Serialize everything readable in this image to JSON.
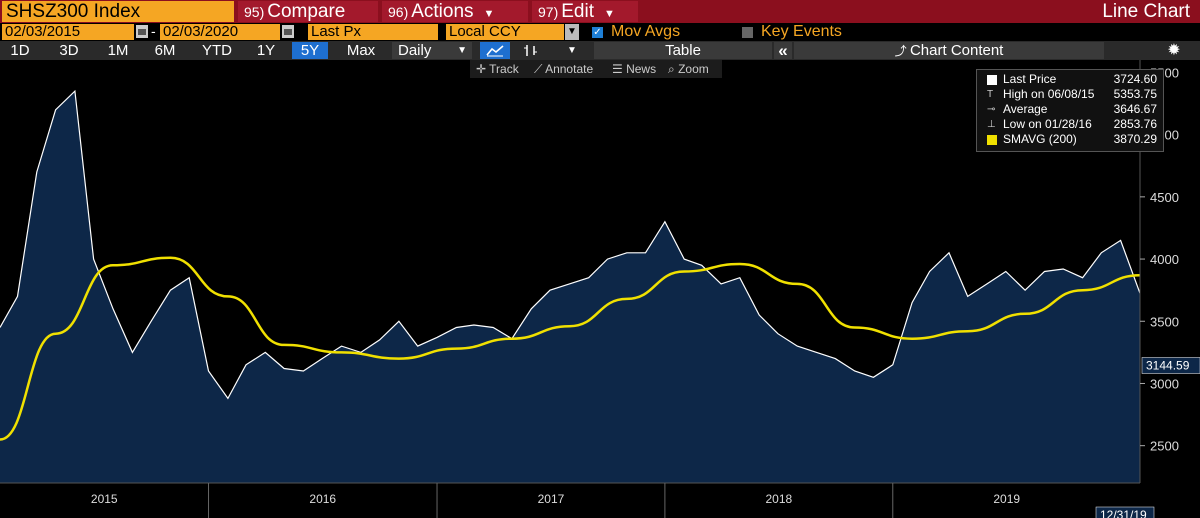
{
  "header": {
    "ticker": "SHSZ300 Index",
    "menus": [
      {
        "num": "95)",
        "label": "Compare"
      },
      {
        "num": "96)",
        "label": "Actions"
      },
      {
        "num": "97)",
        "label": "Edit"
      }
    ],
    "chart_kind": "Line Chart"
  },
  "controls": {
    "start_date": "02/03/2015",
    "end_date": "02/03/2020",
    "field": "Last Px",
    "currency": "Local CCY",
    "mov_avgs_label": "Mov Avgs",
    "key_events_label": "Key Events"
  },
  "toolbar": {
    "ranges": [
      "1D",
      "3D",
      "1M",
      "6M",
      "YTD",
      "1Y",
      "5Y",
      "Max"
    ],
    "selected_range": "5Y",
    "periodicity": "Daily",
    "table_label": "Table",
    "collapse_label": "«",
    "chart_content_label": "Chart Content"
  },
  "tools": {
    "track": "Track",
    "annotate": "Annotate",
    "news": "News",
    "zoom": "Zoom"
  },
  "legend": [
    {
      "name": "Last Price",
      "value": "3724.60",
      "color": "#ffffff"
    },
    {
      "name": "High on 06/08/15",
      "value": "5353.75",
      "color": "#ffffff"
    },
    {
      "name": "Average",
      "value": "3646.67",
      "color": "#ffffff"
    },
    {
      "name": "Low on 01/28/16",
      "value": "2853.76",
      "color": "#ffffff"
    },
    {
      "name": "SMAVG (200)",
      "value": "3870.29",
      "color": "#f0e000"
    }
  ],
  "price_tag": "3144.59",
  "date_tag": "12/31/19",
  "colors": {
    "price_line": "#ffffff",
    "price_fill": "#0d2748",
    "sma_line": "#f0e000",
    "header_bar": "#8b0f1e",
    "accent_orange": "#f5a623"
  },
  "chart_data": {
    "type": "area",
    "ylim": [
      2200,
      5600
    ],
    "yticks": [
      2500,
      3000,
      3500,
      4000,
      4500,
      5000,
      5500
    ],
    "year_labels": [
      "2015",
      "2016",
      "2017",
      "2018",
      "2019"
    ],
    "series": [
      {
        "name": "Last Price",
        "x": [
          "2015-02",
          "2015-03",
          "2015-04",
          "2015-05",
          "2015-06",
          "2015-07",
          "2015-08",
          "2015-09",
          "2015-10",
          "2015-11",
          "2015-12",
          "2016-01",
          "2016-02",
          "2016-03",
          "2016-04",
          "2016-05",
          "2016-06",
          "2016-07",
          "2016-08",
          "2016-09",
          "2016-10",
          "2016-11",
          "2016-12",
          "2017-01",
          "2017-02",
          "2017-03",
          "2017-04",
          "2017-05",
          "2017-06",
          "2017-07",
          "2017-08",
          "2017-09",
          "2017-10",
          "2017-11",
          "2017-12",
          "2018-01",
          "2018-02",
          "2018-03",
          "2018-04",
          "2018-05",
          "2018-06",
          "2018-07",
          "2018-08",
          "2018-09",
          "2018-10",
          "2018-11",
          "2018-12",
          "2019-01",
          "2019-02",
          "2019-03",
          "2019-04",
          "2019-05",
          "2019-06",
          "2019-07",
          "2019-08",
          "2019-09",
          "2019-10",
          "2019-11",
          "2019-12",
          "2020-01",
          "2020-02"
        ],
        "values": [
          3450,
          3700,
          4700,
          5200,
          5350,
          4000,
          3600,
          3250,
          3500,
          3750,
          3850,
          3100,
          2880,
          3150,
          3250,
          3120,
          3100,
          3200,
          3300,
          3250,
          3350,
          3500,
          3300,
          3370,
          3450,
          3470,
          3450,
          3360,
          3600,
          3750,
          3800,
          3850,
          4000,
          4050,
          4050,
          4300,
          4000,
          3950,
          3800,
          3850,
          3550,
          3400,
          3300,
          3250,
          3200,
          3100,
          3050,
          3150,
          3650,
          3900,
          4050,
          3700,
          3800,
          3900,
          3750,
          3900,
          3920,
          3850,
          4050,
          4150,
          3724.6
        ]
      },
      {
        "name": "SMAVG (200)",
        "x": [
          "2015-02",
          "2015-05",
          "2015-08",
          "2015-11",
          "2016-02",
          "2016-05",
          "2016-08",
          "2016-11",
          "2017-02",
          "2017-05",
          "2017-08",
          "2017-11",
          "2018-02",
          "2018-05",
          "2018-08",
          "2018-11",
          "2019-02",
          "2019-05",
          "2019-08",
          "2019-11",
          "2020-02"
        ],
        "values": [
          2550,
          3400,
          3950,
          4010,
          3700,
          3310,
          3250,
          3200,
          3280,
          3360,
          3460,
          3680,
          3900,
          3960,
          3800,
          3450,
          3360,
          3420,
          3560,
          3750,
          3870.29
        ]
      }
    ]
  }
}
